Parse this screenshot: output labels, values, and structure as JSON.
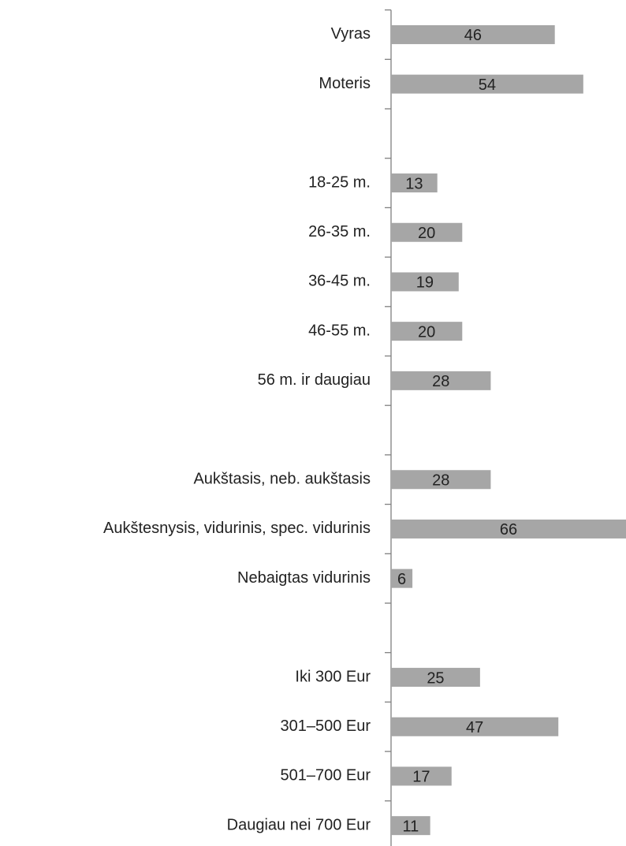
{
  "chart_data": {
    "type": "barh",
    "categories": [
      "Vyras",
      "Moteris",
      null,
      "18-25 m.",
      "26-35 m.",
      "36-45 m.",
      "46-55 m.",
      "56 m. ir daugiau",
      null,
      "Aukštasis, neb. aukštasis",
      "Aukštesnysis, vidurinis, spec. vidurinis",
      "Nebaigtas vidurinis",
      null,
      "Iki 300 Eur",
      "301–500 Eur",
      "501–700 Eur",
      "Daugiau nei 700 Eur"
    ],
    "values": [
      46,
      54,
      null,
      13,
      20,
      19,
      20,
      28,
      null,
      28,
      66,
      6,
      null,
      25,
      47,
      17,
      11
    ],
    "color": "#a6a6a6",
    "xlim": [
      0,
      66
    ]
  }
}
